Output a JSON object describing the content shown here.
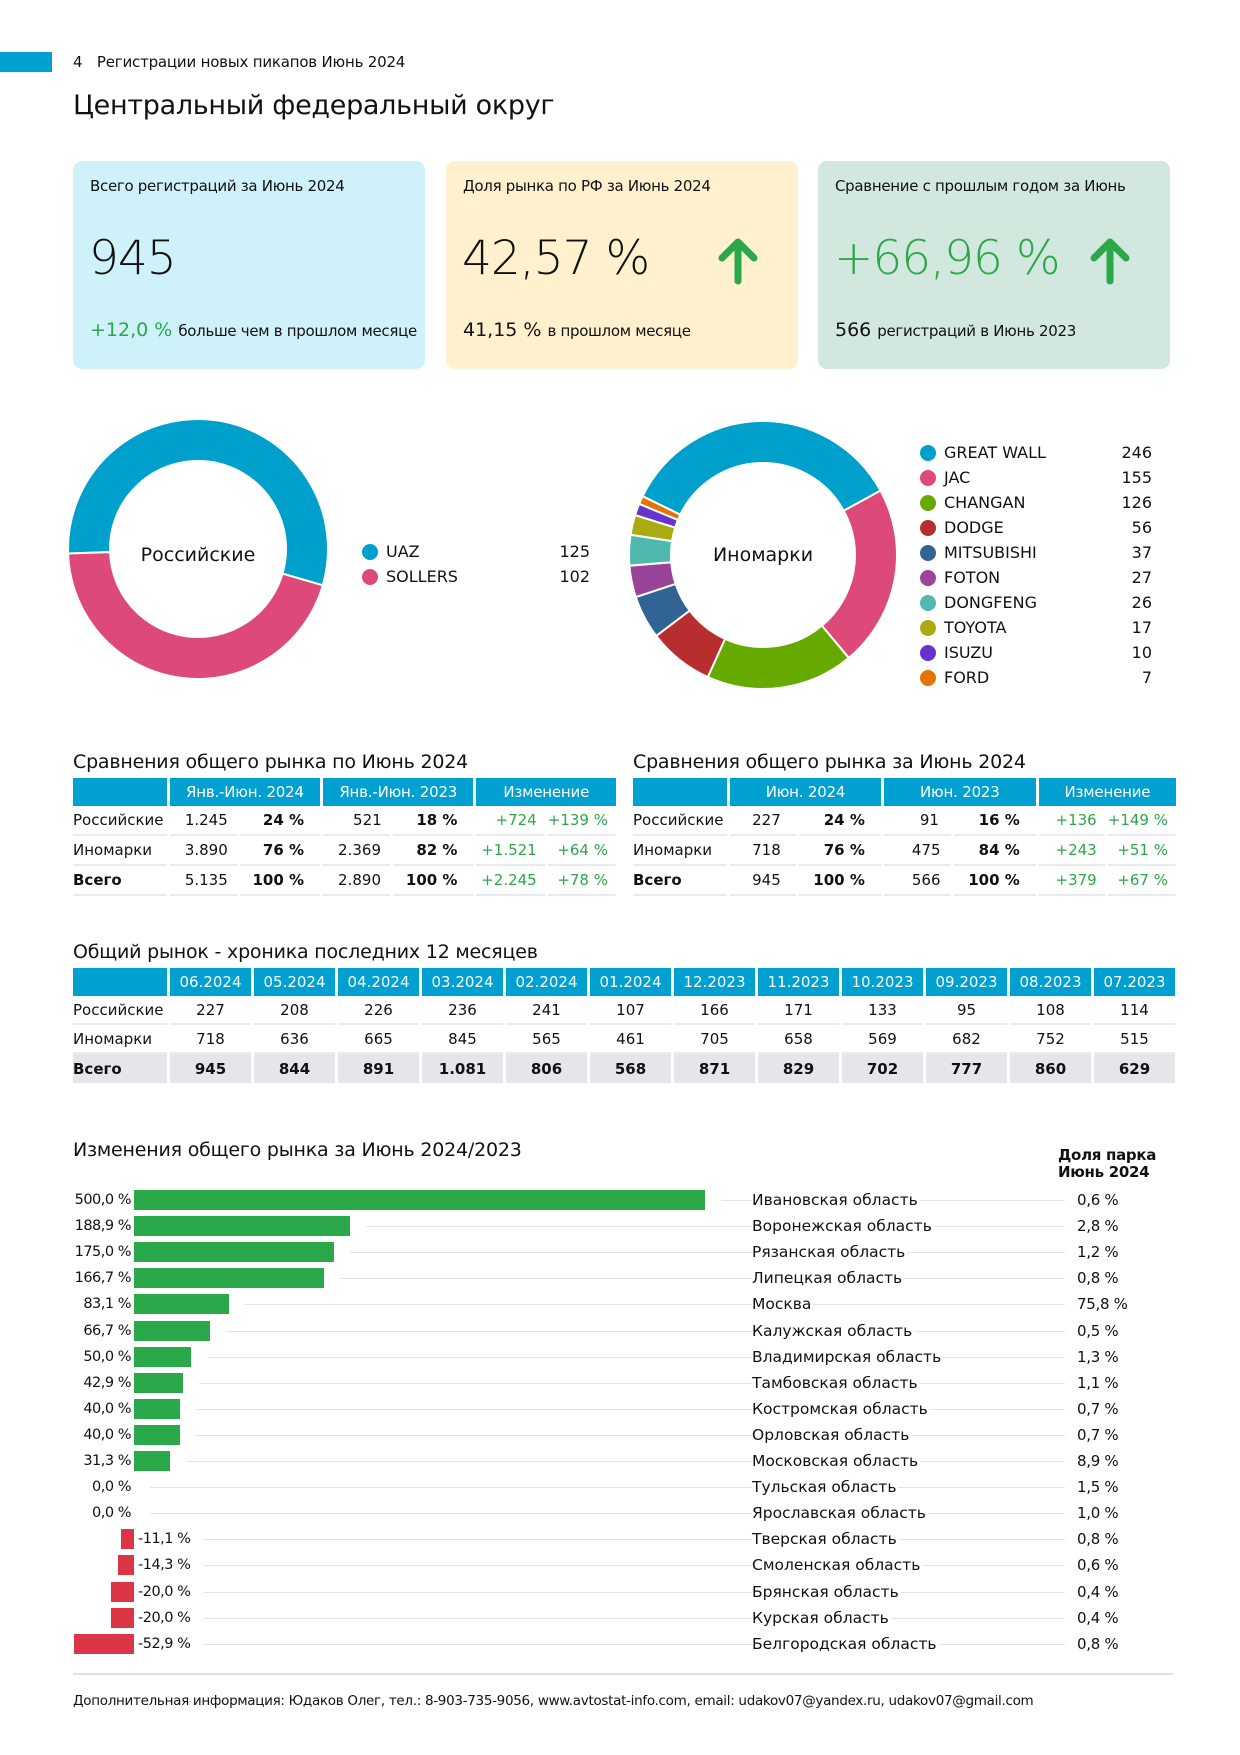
{
  "header": {
    "page_number": "4",
    "report_title": "Регистрации новых пикапов Июнь 2024",
    "page_title": "Центральный федеральный округ",
    "accent_color": "#00a0d0"
  },
  "cards": [
    {
      "title": "Всего регистраций за Июнь 2024",
      "value": "945",
      "foot_value": "+12,0 %",
      "foot_text": "больше чем в прошлом месяце",
      "bg": "#cff2fa"
    },
    {
      "title": "Доля рынка по РФ за Июнь 2024",
      "value": "42,57 %",
      "foot_value": "41,15 %",
      "foot_text": "в прошлом месяце",
      "icon": "arrow-up-icon",
      "bg": "#fff1cd"
    },
    {
      "title": "Сравнение с прошлым годом за Июнь",
      "value": "+66,96 %",
      "foot_value": "566",
      "foot_text": "регистраций в Июнь 2023",
      "icon": "arrow-up-icon",
      "bg": "#d2e8de"
    }
  ],
  "chart_data": [
    {
      "type": "pie",
      "title": "Российские",
      "categories": [
        "UAZ",
        "SOLLERS"
      ],
      "values": [
        125,
        102
      ],
      "colors": [
        "#00a0cc",
        "#dd4a7a"
      ],
      "legend": "right"
    },
    {
      "type": "pie",
      "title": "Иномарки",
      "categories": [
        "GREAT WALL",
        "JAC",
        "CHANGAN",
        "DODGE",
        "MITSUBISHI",
        "FOTON",
        "DONGFENG",
        "TOYOTA",
        "ISUZU",
        "FORD"
      ],
      "values": [
        246,
        155,
        126,
        56,
        37,
        27,
        26,
        17,
        10,
        7
      ],
      "colors": [
        "#00a0cc",
        "#dd4a7a",
        "#66aa00",
        "#b82e2e",
        "#316395",
        "#994499",
        "#4fb9ae",
        "#aaaa11",
        "#6633cc",
        "#e67300"
      ],
      "legend": "right"
    },
    {
      "type": "bar",
      "title": "Изменения общего рынка за Июнь 2024/2023",
      "orientation": "horizontal",
      "categories": [
        "Ивановская область",
        "Воронежская область",
        "Рязанская область",
        "Липецкая область",
        "Москва",
        "Калужская область",
        "Владимирская область",
        "Тамбовская область",
        "Костромская область",
        "Орловская область",
        "Московская область",
        "Тульская область",
        "Ярославская область",
        "Тверская область",
        "Смоленская область",
        "Брянская область",
        "Курская область",
        "Белгородская область"
      ],
      "values": [
        500.0,
        188.9,
        175.0,
        166.7,
        83.1,
        66.7,
        50.0,
        42.9,
        40.0,
        40.0,
        31.3,
        0.0,
        0.0,
        -11.1,
        -14.3,
        -20.0,
        -20.0,
        -52.9
      ],
      "value_labels": [
        "500,0 %",
        "188,9 %",
        "175,0 %",
        "166,7 %",
        "83,1 %",
        "66,7 %",
        "50,0 %",
        "42,9 %",
        "40,0 %",
        "40,0 %",
        "31,3 %",
        "0,0 %",
        "0,0 %",
        "-11,1 %",
        "-14,3 %",
        "-20,0 %",
        "-20,0 %",
        "-52,9 %"
      ],
      "share_header": [
        "Доля парка",
        "Июнь 2024"
      ],
      "share": [
        "0,6 %",
        "2,8 %",
        "1,2 %",
        "0,8 %",
        "75,8 %",
        "0,5 %",
        "1,3 %",
        "1,1 %",
        "0,7 %",
        "0,7 %",
        "8,9 %",
        "1,5 %",
        "1,0 %",
        "0,8 %",
        "0,6 %",
        "0,4 %",
        "0,4 %",
        "0,8 %"
      ],
      "positive_color": "#2aa84a",
      "negative_color": "#dc3545",
      "xlabel": "",
      "ylabel": ""
    }
  ],
  "table_ytd": {
    "title": "Сравнения общего рынка по Июнь 2024",
    "headers": [
      "",
      "Янв.-Июн. 2024",
      "Янв.-Июн. 2023",
      "Изменение"
    ],
    "rows": [
      {
        "label": "Российские",
        "v1": "1.245",
        "p1": "24 %",
        "v2": "521",
        "p2": "18 %",
        "d": "+724",
        "dp": "+139 %"
      },
      {
        "label": "Иномарки",
        "v1": "3.890",
        "p1": "76 %",
        "v2": "2.369",
        "p2": "82 %",
        "d": "+1.521",
        "dp": "+64 %"
      },
      {
        "label": "Всего",
        "v1": "5.135",
        "p1": "100 %",
        "v2": "2.890",
        "p2": "100 %",
        "d": "+2.245",
        "dp": "+78 %"
      }
    ]
  },
  "table_month": {
    "title": "Сравнения общего рынка за Июнь 2024",
    "headers": [
      "",
      "Июн. 2024",
      "Июн. 2023",
      "Изменение"
    ],
    "rows": [
      {
        "label": "Российские",
        "v1": "227",
        "p1": "24 %",
        "v2": "91",
        "p2": "16 %",
        "d": "+136",
        "dp": "+149 %"
      },
      {
        "label": "Иномарки",
        "v1": "718",
        "p1": "76 %",
        "v2": "475",
        "p2": "84 %",
        "d": "+243",
        "dp": "+51 %"
      },
      {
        "label": "Всего",
        "v1": "945",
        "p1": "100 %",
        "v2": "566",
        "p2": "100 %",
        "d": "+379",
        "dp": "+67 %"
      }
    ]
  },
  "history": {
    "title": "Общий рынок - хроника последних 12 месяцев",
    "months": [
      "06.2024",
      "05.2024",
      "04.2024",
      "03.2024",
      "02.2024",
      "01.2024",
      "12.2023",
      "11.2023",
      "10.2023",
      "09.2023",
      "08.2023",
      "07.2023"
    ],
    "rows": [
      {
        "label": "Российские",
        "values": [
          "227",
          "208",
          "226",
          "236",
          "241",
          "107",
          "166",
          "171",
          "133",
          "95",
          "108",
          "114"
        ]
      },
      {
        "label": "Иномарки",
        "values": [
          "718",
          "636",
          "665",
          "845",
          "565",
          "461",
          "705",
          "658",
          "569",
          "682",
          "752",
          "515"
        ]
      },
      {
        "label": "Всего",
        "values": [
          "945",
          "844",
          "891",
          "1.081",
          "806",
          "568",
          "871",
          "829",
          "702",
          "777",
          "860",
          "629"
        ]
      }
    ]
  },
  "footer": {
    "text": "Дополнительная информация: Юдаков Олег, тел.: 8-903-735-9056, www.avtostat-info.com, email: udakov07@yandex.ru, udakov07@gmail.com"
  }
}
